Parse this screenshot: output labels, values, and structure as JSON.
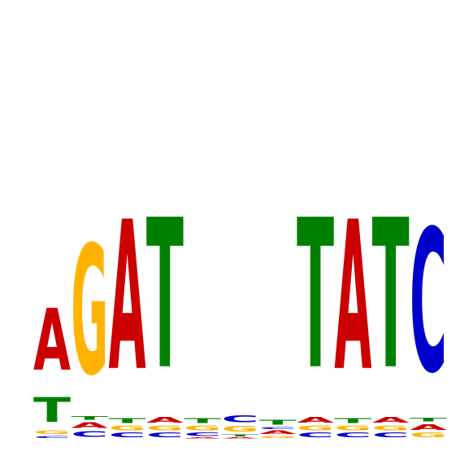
{
  "chart_data": {
    "type": "sequence-logo",
    "title": "",
    "xlabel": "",
    "ylabel": "",
    "ylim": [
      0,
      2
    ],
    "alphabet": [
      "A",
      "C",
      "G",
      "T"
    ],
    "colors": {
      "A": "#cc0000",
      "C": "#0000cc",
      "G": "#ffb300",
      "T": "#008000"
    },
    "positions": [
      {
        "pos": 1,
        "stack": [
          {
            "letter": "C",
            "bits": 0.02
          },
          {
            "letter": "G",
            "bits": 0.03
          },
          {
            "letter": "T",
            "bits": 0.22
          },
          {
            "letter": "A",
            "bits": 0.55
          }
        ]
      },
      {
        "pos": 2,
        "stack": [
          {
            "letter": "C",
            "bits": 0.05
          },
          {
            "letter": "A",
            "bits": 0.05
          },
          {
            "letter": "T",
            "bits": 0.03
          },
          {
            "letter": "G",
            "bits": 1.15
          }
        ]
      },
      {
        "pos": 3,
        "stack": [
          {
            "letter": "C",
            "bits": 0.04
          },
          {
            "letter": "G",
            "bits": 0.04
          },
          {
            "letter": "T",
            "bits": 0.04
          },
          {
            "letter": "A",
            "bits": 1.33
          }
        ]
      },
      {
        "pos": 4,
        "stack": [
          {
            "letter": "C",
            "bits": 0.04
          },
          {
            "letter": "G",
            "bits": 0.04
          },
          {
            "letter": "A",
            "bits": 0.05
          },
          {
            "letter": "T",
            "bits": 1.33
          }
        ]
      },
      {
        "pos": 5,
        "stack": [
          {
            "letter": "A",
            "bits": 0.01
          },
          {
            "letter": "C",
            "bits": 0.03
          },
          {
            "letter": "G",
            "bits": 0.04
          },
          {
            "letter": "T",
            "bits": 0.04
          }
        ]
      },
      {
        "pos": 6,
        "stack": [
          {
            "letter": "A",
            "bits": 0.01
          },
          {
            "letter": "T",
            "bits": 0.02
          },
          {
            "letter": "G",
            "bits": 0.05
          },
          {
            "letter": "C",
            "bits": 0.06
          }
        ]
      },
      {
        "pos": 7,
        "stack": [
          {
            "letter": "G",
            "bits": 0.02
          },
          {
            "letter": "A",
            "bits": 0.03
          },
          {
            "letter": "C",
            "bits": 0.02
          },
          {
            "letter": "T",
            "bits": 0.04
          }
        ]
      },
      {
        "pos": 8,
        "stack": [
          {
            "letter": "C",
            "bits": 0.04
          },
          {
            "letter": "G",
            "bits": 0.04
          },
          {
            "letter": "A",
            "bits": 0.05
          },
          {
            "letter": "T",
            "bits": 1.33
          }
        ]
      },
      {
        "pos": 9,
        "stack": [
          {
            "letter": "C",
            "bits": 0.04
          },
          {
            "letter": "G",
            "bits": 0.04
          },
          {
            "letter": "T",
            "bits": 0.04
          },
          {
            "letter": "A",
            "bits": 1.33
          }
        ]
      },
      {
        "pos": 10,
        "stack": [
          {
            "letter": "C",
            "bits": 0.04
          },
          {
            "letter": "G",
            "bits": 0.04
          },
          {
            "letter": "A",
            "bits": 0.05
          },
          {
            "letter": "T",
            "bits": 1.33
          }
        ]
      },
      {
        "pos": 11,
        "stack": [
          {
            "letter": "G",
            "bits": 0.04
          },
          {
            "letter": "A",
            "bits": 0.05
          },
          {
            "letter": "T",
            "bits": 0.03
          },
          {
            "letter": "C",
            "bits": 1.27
          }
        ]
      }
    ]
  }
}
